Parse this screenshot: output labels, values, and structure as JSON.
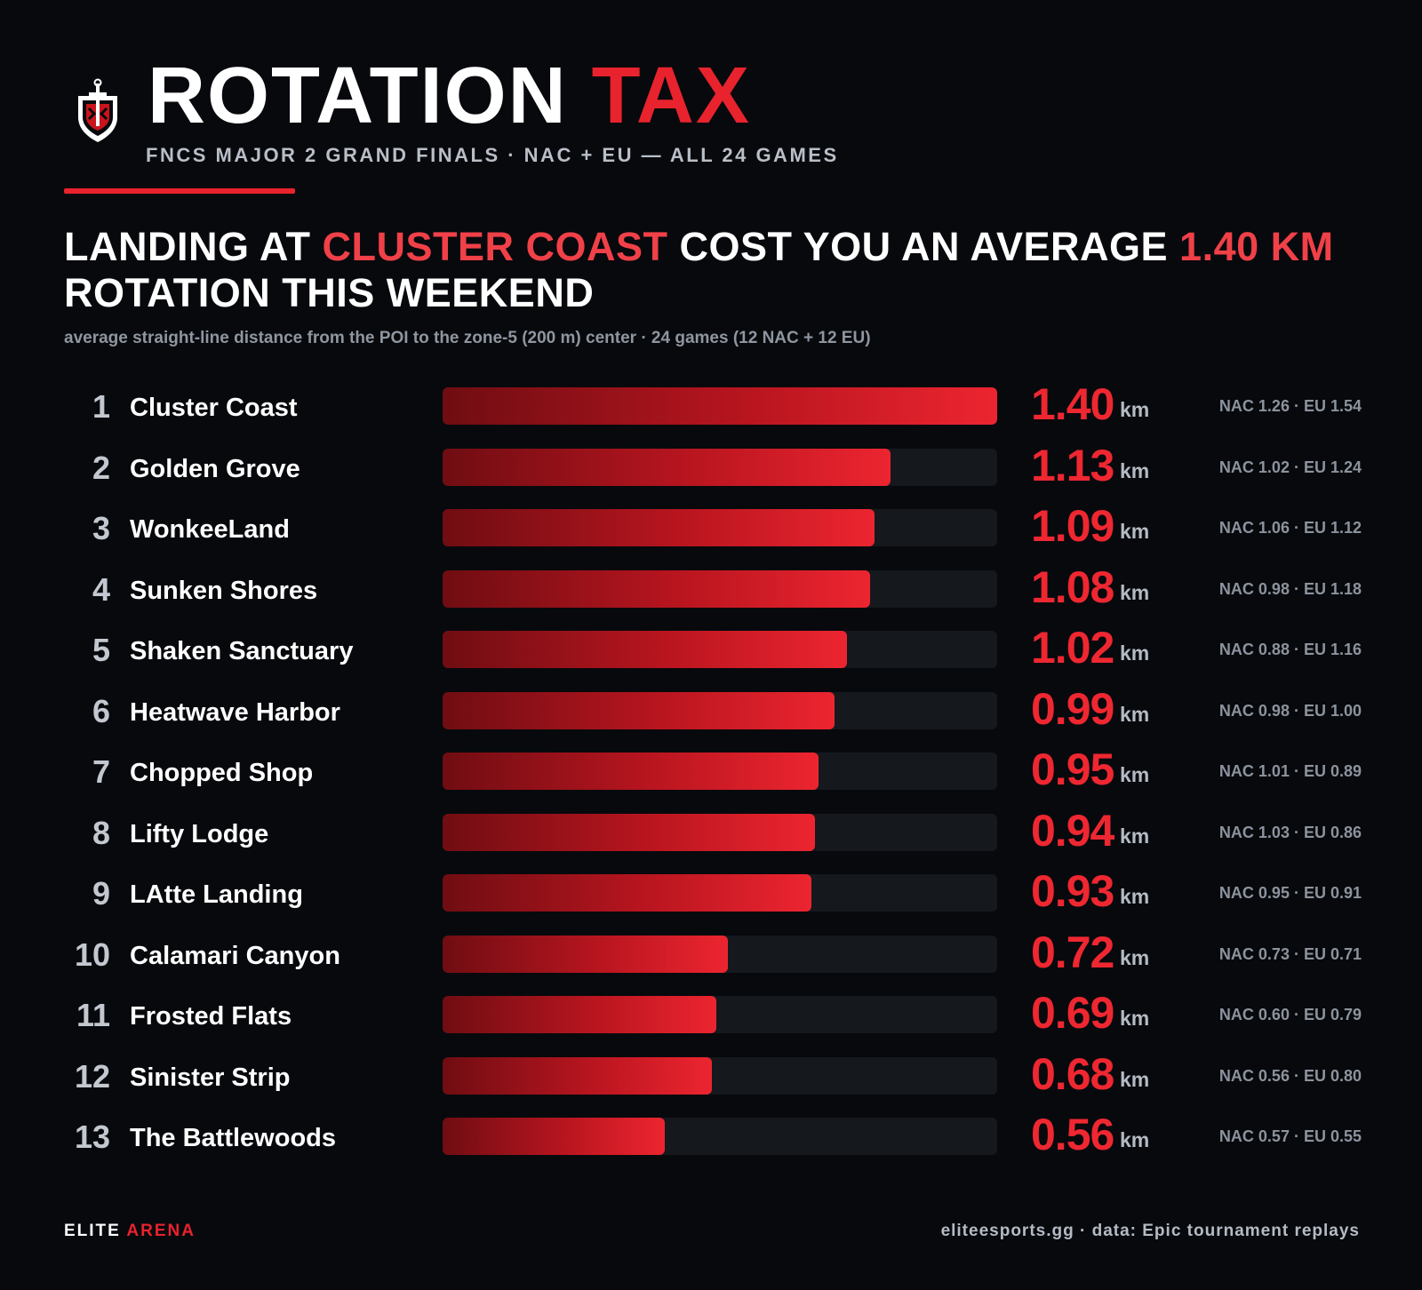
{
  "header": {
    "logo_icon": "shield-sword-icon",
    "title_main": "ROTATION",
    "title_accent": "TAX",
    "subtitle": "FNCS MAJOR 2 GRAND FINALS · NAC + EU — ALL 24 GAMES"
  },
  "headline": {
    "part1": "LANDING AT ",
    "poi": "CLUSTER COAST",
    "part2": " COST YOU AN AVERAGE ",
    "value": "1.40 KM",
    "part3": " ROTATION THIS WEEKEND"
  },
  "note": "average straight-line distance from the POI to the zone-5 (200 m) center · 24 games (12 NAC + 12 EU)",
  "chart_data": {
    "type": "bar",
    "orientation": "horizontal",
    "unit": "km",
    "xlim": [
      0,
      1.4
    ],
    "categories": [
      "Cluster Coast",
      "Golden Grove",
      "WonkeeLand",
      "Sunken Shores",
      "Shaken Sanctuary",
      "Heatwave Harbor",
      "Chopped Shop",
      "Lifty Lodge",
      "LAtte Landing",
      "Calamari Canyon",
      "Frosted Flats",
      "Sinister Strip",
      "The Battlewoods"
    ],
    "ranks": [
      "1",
      "2",
      "3",
      "4",
      "5",
      "6",
      "7",
      "8",
      "9",
      "10",
      "11",
      "12",
      "13"
    ],
    "values": [
      1.4,
      1.13,
      1.09,
      1.08,
      1.02,
      0.99,
      0.95,
      0.94,
      0.93,
      0.72,
      0.69,
      0.68,
      0.56
    ],
    "value_labels": [
      "1.40",
      "1.13",
      "1.09",
      "1.08",
      "1.02",
      "0.99",
      "0.95",
      "0.94",
      "0.93",
      "0.72",
      "0.69",
      "0.68",
      "0.56"
    ],
    "splits": [
      "NAC 1.26 · EU 1.54",
      "NAC 1.02 · EU 1.24",
      "NAC 1.06 · EU 1.12",
      "NAC 0.98 · EU 1.18",
      "NAC 0.88 · EU 1.16",
      "NAC 0.98 · EU 1.00",
      "NAC 1.01 · EU 0.89",
      "NAC 1.03 · EU 0.86",
      "NAC 0.95 · EU 0.91",
      "NAC 0.73 · EU 0.71",
      "NAC 0.60 · EU 0.79",
      "NAC 0.56 · EU 0.80",
      "NAC 0.57 · EU 0.55"
    ],
    "bar_color": "#e8232d"
  },
  "footer": {
    "brand_main": "ELITE",
    "brand_accent": "ARENA",
    "credit": "eliteesports.gg · data: Epic tournament replays"
  }
}
